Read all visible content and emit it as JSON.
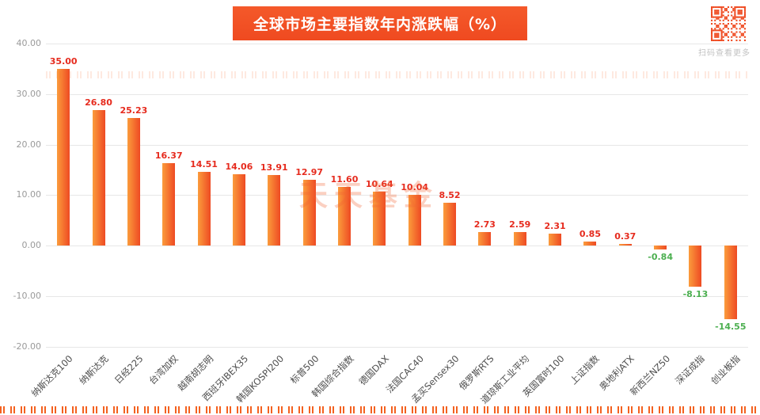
{
  "title": "全球市场主要指数年内涨跌幅（%）",
  "watermark": "天天基金",
  "qr": {
    "caption": "扫码查看更多"
  },
  "colors": {
    "banner": "#ef4a20",
    "bar_gradient_start": "#fb9c3c",
    "bar_gradient_end": "#ee4a23",
    "positive_label": "#e62b1e",
    "negative_label": "#4caf50",
    "grid": "#e7e7e7",
    "axis_text": "#9a9a9a",
    "category_text": "#4d4d4d"
  },
  "chart_data": {
    "type": "bar",
    "title": "全球市场主要指数年内涨跌幅（%）",
    "categories": [
      "纳斯达克100",
      "纳斯达克",
      "日经225",
      "台湾加权",
      "越南胡志明",
      "西班牙IBEX35",
      "韩国KOSPI200",
      "标普500",
      "韩国综合指数",
      "德国DAX",
      "法国CAC40",
      "孟买Sensex30",
      "俄罗斯RTS",
      "道琼斯工业平均",
      "英国富时100",
      "上证指数",
      "奥地利ATX",
      "新西兰NZ50",
      "深证成指",
      "创业板指"
    ],
    "values": [
      35.0,
      26.8,
      25.23,
      16.37,
      14.51,
      14.06,
      13.91,
      12.97,
      11.6,
      10.64,
      10.04,
      8.52,
      2.73,
      2.59,
      2.31,
      0.85,
      0.37,
      -0.84,
      -8.13,
      -14.55
    ],
    "xlabel": "",
    "ylabel": "",
    "ylim": [
      -20,
      40
    ],
    "yticks": [
      40,
      30,
      20,
      10,
      0,
      -10,
      -20
    ],
    "grid": true,
    "legend_position": "none",
    "value_labels": true,
    "category_label_rotation_deg": 45
  }
}
